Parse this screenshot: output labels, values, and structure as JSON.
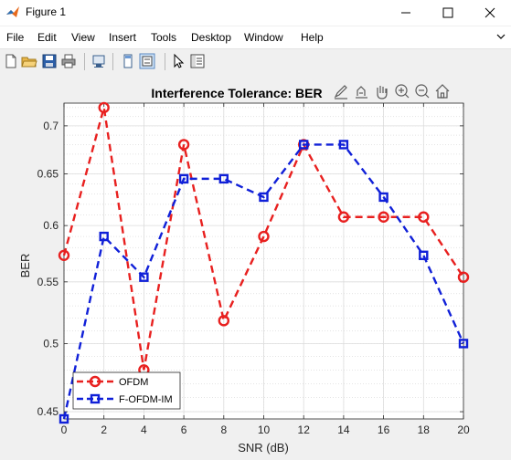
{
  "window": {
    "title": "Figure 1"
  },
  "menu": [
    "File",
    "Edit",
    "View",
    "Insert",
    "Tools",
    "Desktop",
    "Window",
    "Help"
  ],
  "toolbar": {
    "buttons": [
      "new-figure",
      "open-file",
      "save",
      "print",
      "link-plot",
      "dock",
      "insert-legend",
      "edit-plot",
      "property-inspector"
    ]
  },
  "axes_toolbar": [
    "brush-icon",
    "data-tips-icon",
    "pan-icon",
    "zoom-in-icon",
    "zoom-out-icon",
    "home-icon"
  ],
  "colors": {
    "ofdm": "#e8201f",
    "fofdm": "#1020d8"
  },
  "chart_data": {
    "type": "line",
    "title": "Interference Tolerance: BER",
    "xlabel": "SNR (dB)",
    "ylabel": "BER",
    "xlim": [
      0,
      20
    ],
    "ylim": [
      0.445,
      0.725
    ],
    "yscale": "log",
    "x": [
      0,
      2,
      4,
      6,
      8,
      10,
      12,
      14,
      16,
      18,
      20
    ],
    "xticks": [
      "0",
      "2",
      "4",
      "6",
      "8",
      "10",
      "12",
      "14",
      "16",
      "18",
      "20"
    ],
    "yticks": [
      0.45,
      0.5,
      0.55,
      0.6,
      0.65,
      0.7
    ],
    "yticklabels": [
      "0.45",
      "0.5",
      "0.55",
      "0.6",
      "0.65",
      "0.7"
    ],
    "grid": true,
    "minor_grid": true,
    "legend_position": "bottom-left",
    "series": [
      {
        "name": "OFDM",
        "marker": "circle",
        "line": "dashed",
        "values": [
          0.573,
          0.72,
          0.48,
          0.68,
          0.518,
          0.59,
          0.68,
          0.608,
          0.608,
          0.608,
          0.554
        ]
      },
      {
        "name": "F-OFDM-IM",
        "marker": "square",
        "line": "dashed",
        "values": [
          0.445,
          0.59,
          0.554,
          0.645,
          0.645,
          0.627,
          0.68,
          0.68,
          0.627,
          0.573,
          0.5
        ]
      }
    ]
  }
}
